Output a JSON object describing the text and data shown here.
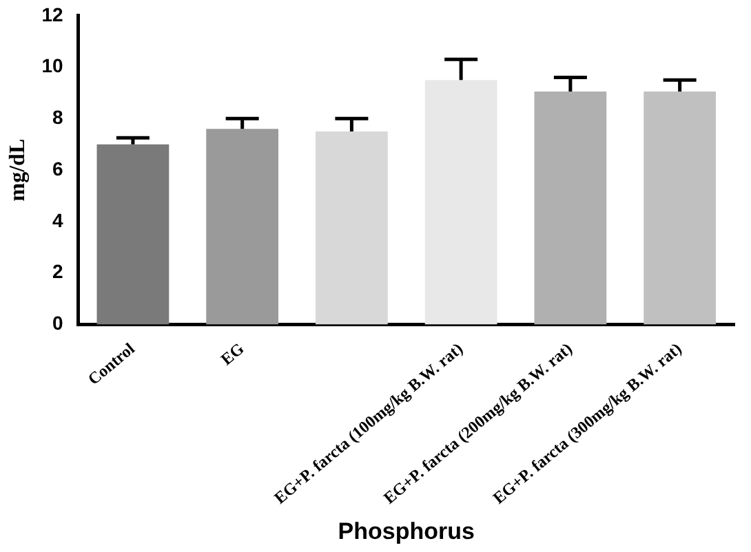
{
  "chart_data": {
    "type": "bar",
    "xlabel": "Phosphorus",
    "ylabel": "mg/dL",
    "categories": [
      "Control",
      "EG",
      null,
      "EG+P. farcta (100mg/kg B.W. rat)",
      "EG+P. farcta (200mg/kg B.W. rat)",
      "EG+P. farcta (300mg/kg B.W. rat)"
    ],
    "values": [
      7.0,
      7.6,
      7.5,
      9.5,
      9.05,
      9.05
    ],
    "errors": [
      0.25,
      0.4,
      0.5,
      0.8,
      0.55,
      0.45
    ],
    "colors": [
      "#7a7a7a",
      "#9a9a9a",
      "#d8d8d8",
      "#e8e8e8",
      "#b0b0b0",
      "#c0c0c0"
    ],
    "ylim": [
      0,
      12
    ],
    "yticks": [
      0,
      2,
      4,
      6,
      8,
      10,
      12
    ],
    "grid": false,
    "legend": false
  }
}
